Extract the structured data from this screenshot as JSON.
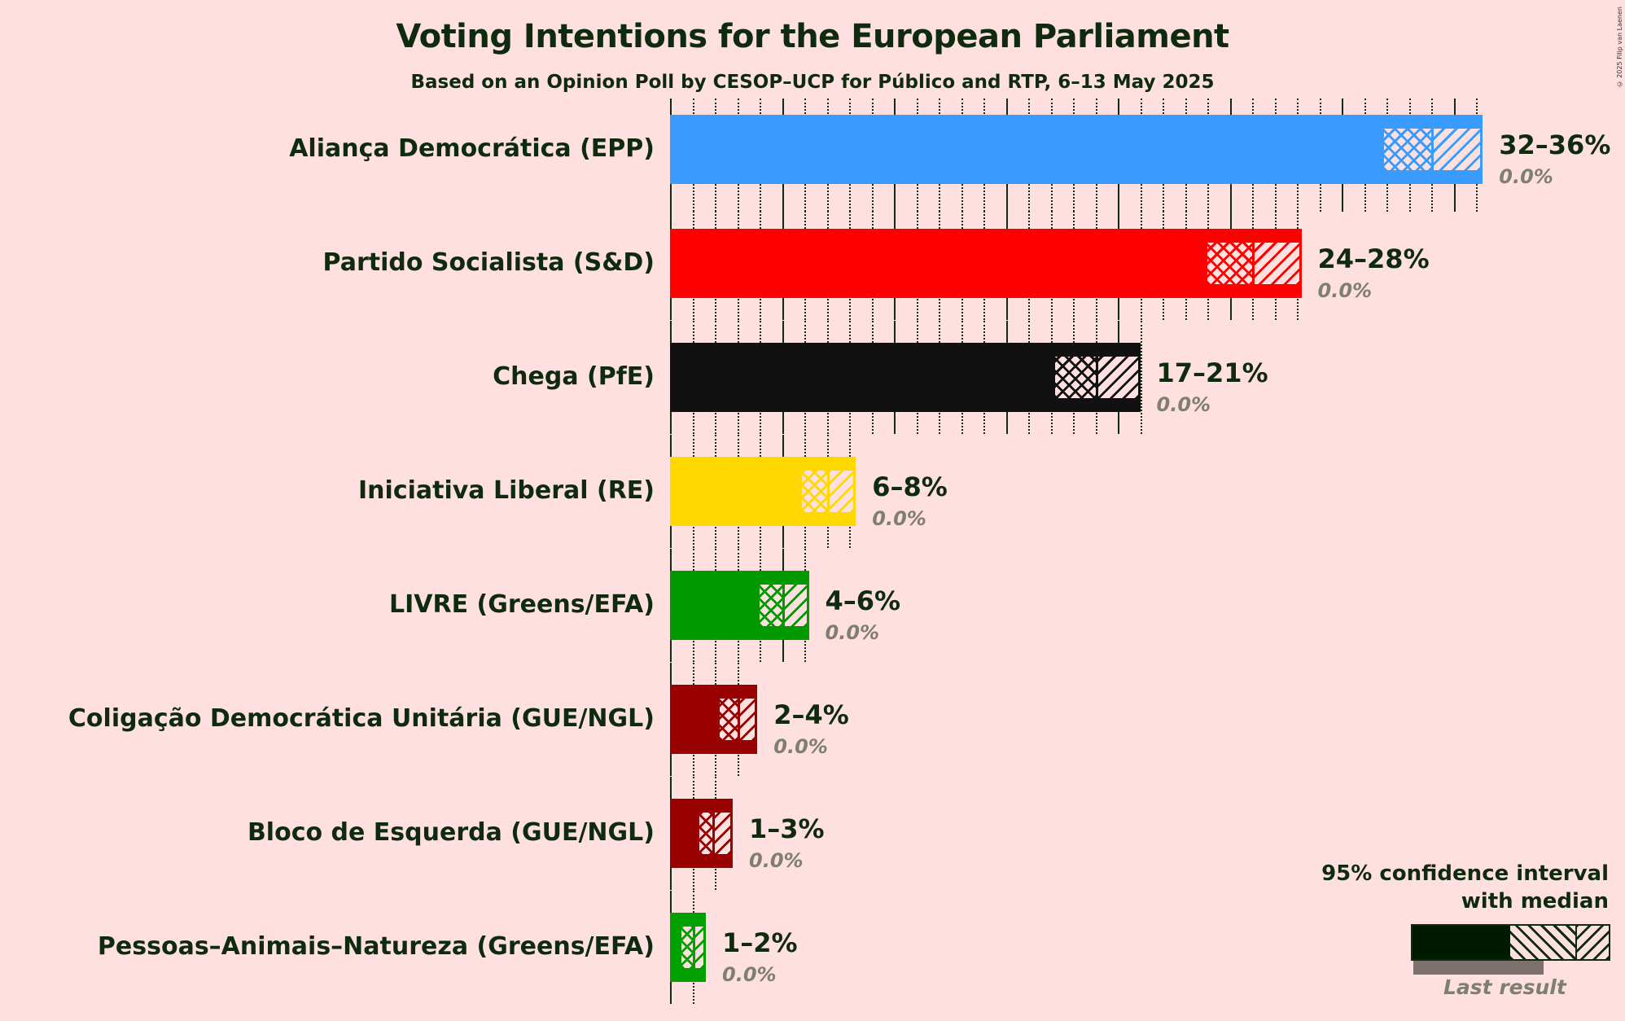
{
  "chart_data": {
    "type": "bar",
    "orientation": "horizontal",
    "title": "Voting Intentions for the European Parliament",
    "subtitle": "Based on an Opinion Poll by CESOP–UCP for Público and RTP, 6–13 May 2025",
    "copyright": "© 2025 Filip van Laenen",
    "xlim": [
      0,
      37
    ],
    "grid": {
      "minor_step": 1,
      "major_step": 5
    },
    "categories": [
      "Aliança Democrática (EPP)",
      "Partido Socialista (S&D)",
      "Chega (PfE)",
      "Iniciativa Liberal (RE)",
      "LIVRE (Greens/EFA)",
      "Coligação Democrática Unitária (GUE/NGL)",
      "Bloco de Esquerda (GUE/NGL)",
      "Pessoas–Animais–Natureza (Greens/EFA)"
    ],
    "series": [
      {
        "name": "ci_low",
        "values": [
          31.9,
          24.0,
          17.2,
          5.9,
          4.0,
          2.2,
          1.3,
          0.5
        ]
      },
      {
        "name": "median",
        "values": [
          34.0,
          26.0,
          19.0,
          7.0,
          5.0,
          3.0,
          1.9,
          1.0
        ]
      },
      {
        "name": "ci_high",
        "values": [
          36.3,
          28.2,
          21.0,
          8.3,
          6.2,
          3.9,
          2.8,
          1.6
        ]
      },
      {
        "name": "last_result",
        "values": [
          0,
          0,
          0,
          0,
          0,
          0,
          0,
          0
        ]
      }
    ],
    "range_labels": [
      "32–36%",
      "24–28%",
      "17–21%",
      "6–8%",
      "4–6%",
      "2–4%",
      "1–3%",
      "1–2%"
    ],
    "last_labels": [
      "0.0%",
      "0.0%",
      "0.0%",
      "0.0%",
      "0.0%",
      "0.0%",
      "0.0%",
      "0.0%"
    ],
    "colors": [
      "#3A9BFF",
      "#FF0000",
      "#111111",
      "#FFD800",
      "#009900",
      "#990000",
      "#990000",
      "#00A000"
    ],
    "legend": {
      "title_line1": "95% confidence interval",
      "title_line2": "with median",
      "last_result": "Last result",
      "placement": "bottom-right"
    }
  }
}
